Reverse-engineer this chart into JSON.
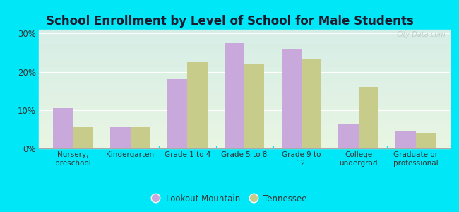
{
  "title": "School Enrollment by Level of School for Male Students",
  "categories": [
    "Nursery,\npreschool",
    "Kindergarten",
    "Grade 1 to 4",
    "Grade 5 to 8",
    "Grade 9 to\n12",
    "College\nundergrad",
    "Graduate or\nprofessional"
  ],
  "lookout_mountain": [
    10.5,
    5.5,
    18.0,
    27.5,
    26.0,
    6.5,
    4.5
  ],
  "tennessee": [
    5.5,
    5.5,
    22.5,
    22.0,
    23.5,
    16.0,
    4.0
  ],
  "lookout_color": "#c9a8dc",
  "tennessee_color": "#c8cc8a",
  "background_outer": "#00e8f8",
  "background_inner_top": "#d6ede6",
  "background_inner_bottom": "#e8f5e2",
  "ylabel_ticks": [
    0,
    10,
    20,
    30
  ],
  "ylim": [
    0,
    31
  ],
  "legend_lookout": "Lookout Mountain",
  "legend_tennessee": "Tennessee",
  "watermark": "City-Data.com",
  "bar_width": 0.35,
  "title_fontsize": 12,
  "tick_fontsize": 7.5,
  "ytick_fontsize": 8.5
}
